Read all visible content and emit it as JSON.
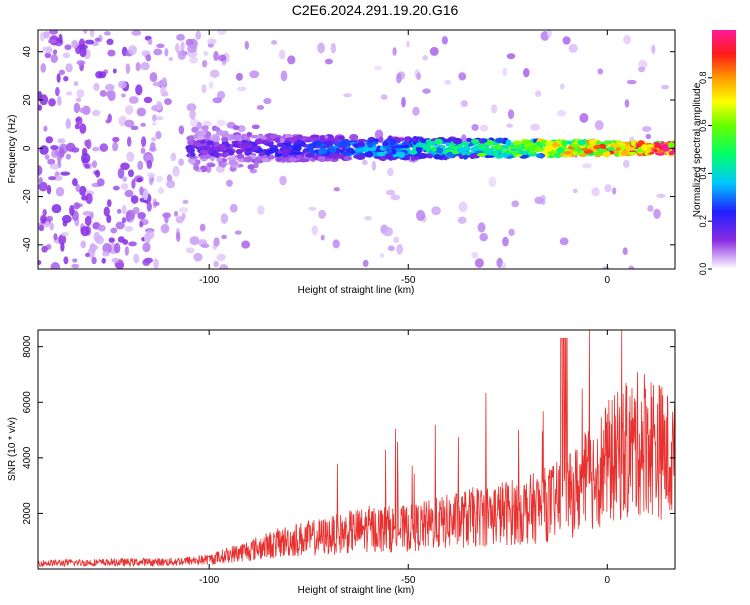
{
  "title": "C2E6.2024.291.19.20.G16",
  "colors": {
    "noise": "#8a2be2",
    "snr_line": "#e8312f",
    "axis": "#000000"
  },
  "chart_data": [
    {
      "type": "heatmap",
      "xlabel": "Height of straight line (km)",
      "ylabel": "Frequency (Hz)",
      "xlim": [
        -143,
        17
      ],
      "ylim": [
        -50,
        49
      ],
      "xticks": [
        -100,
        -50,
        0
      ],
      "yticks": [
        -40,
        -20,
        0,
        20,
        40
      ],
      "colorbar": {
        "label": "Normalized spectral amplitude",
        "range": [
          0.0,
          1.0
        ],
        "ticks": [
          0.0,
          0.2,
          0.4,
          0.6,
          0.8
        ]
      },
      "ridge": {
        "center_hz": 0,
        "amplitude_near_0km": 0.95,
        "amplitude_at_-100km": 0.2
      }
    },
    {
      "type": "line",
      "xlabel": "Height of straight line (km)",
      "ylabel": "SNR (10 * v/v)",
      "xlim": [
        -143,
        17
      ],
      "ylim": [
        0,
        8600
      ],
      "xticks": [
        -100,
        -50,
        0
      ],
      "yticks": [
        2000,
        4000,
        6000,
        8000
      ],
      "series_envelope": {
        "x": [
          -143,
          -110,
          -100,
          -90,
          -80,
          -70,
          -60,
          -50,
          -40,
          -30,
          -20,
          -10,
          0,
          5,
          10,
          17
        ],
        "y": [
          250,
          300,
          400,
          800,
          1200,
          1400,
          1700,
          1700,
          2000,
          2300,
          2500,
          3000,
          4500,
          5000,
          5500,
          4500
        ]
      }
    }
  ]
}
